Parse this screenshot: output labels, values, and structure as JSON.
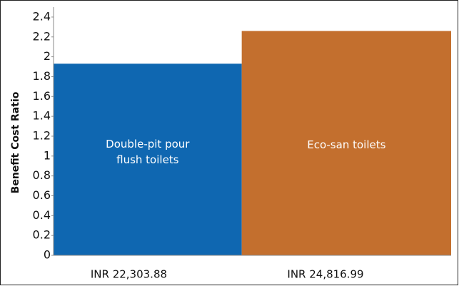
{
  "chart_data": {
    "type": "bar",
    "y_label": "Benefit Cost Ratio",
    "categories": [
      "Double-pit pour flush toilets",
      "Eco-san toilets"
    ],
    "values": [
      1.93,
      2.26
    ],
    "widths": [
      22303.88,
      24816.99
    ],
    "width_labels": [
      "INR 22,303.88",
      "INR 24,816.99"
    ],
    "colors": [
      "#0f67b1",
      "#c36f2e"
    ],
    "ylim": [
      0,
      2.5
    ],
    "yticks": [
      0,
      0.2,
      0.4,
      0.6,
      0.8,
      1,
      1.2,
      1.4,
      1.6,
      1.8,
      2,
      2.2,
      2.4
    ],
    "grid": false
  }
}
